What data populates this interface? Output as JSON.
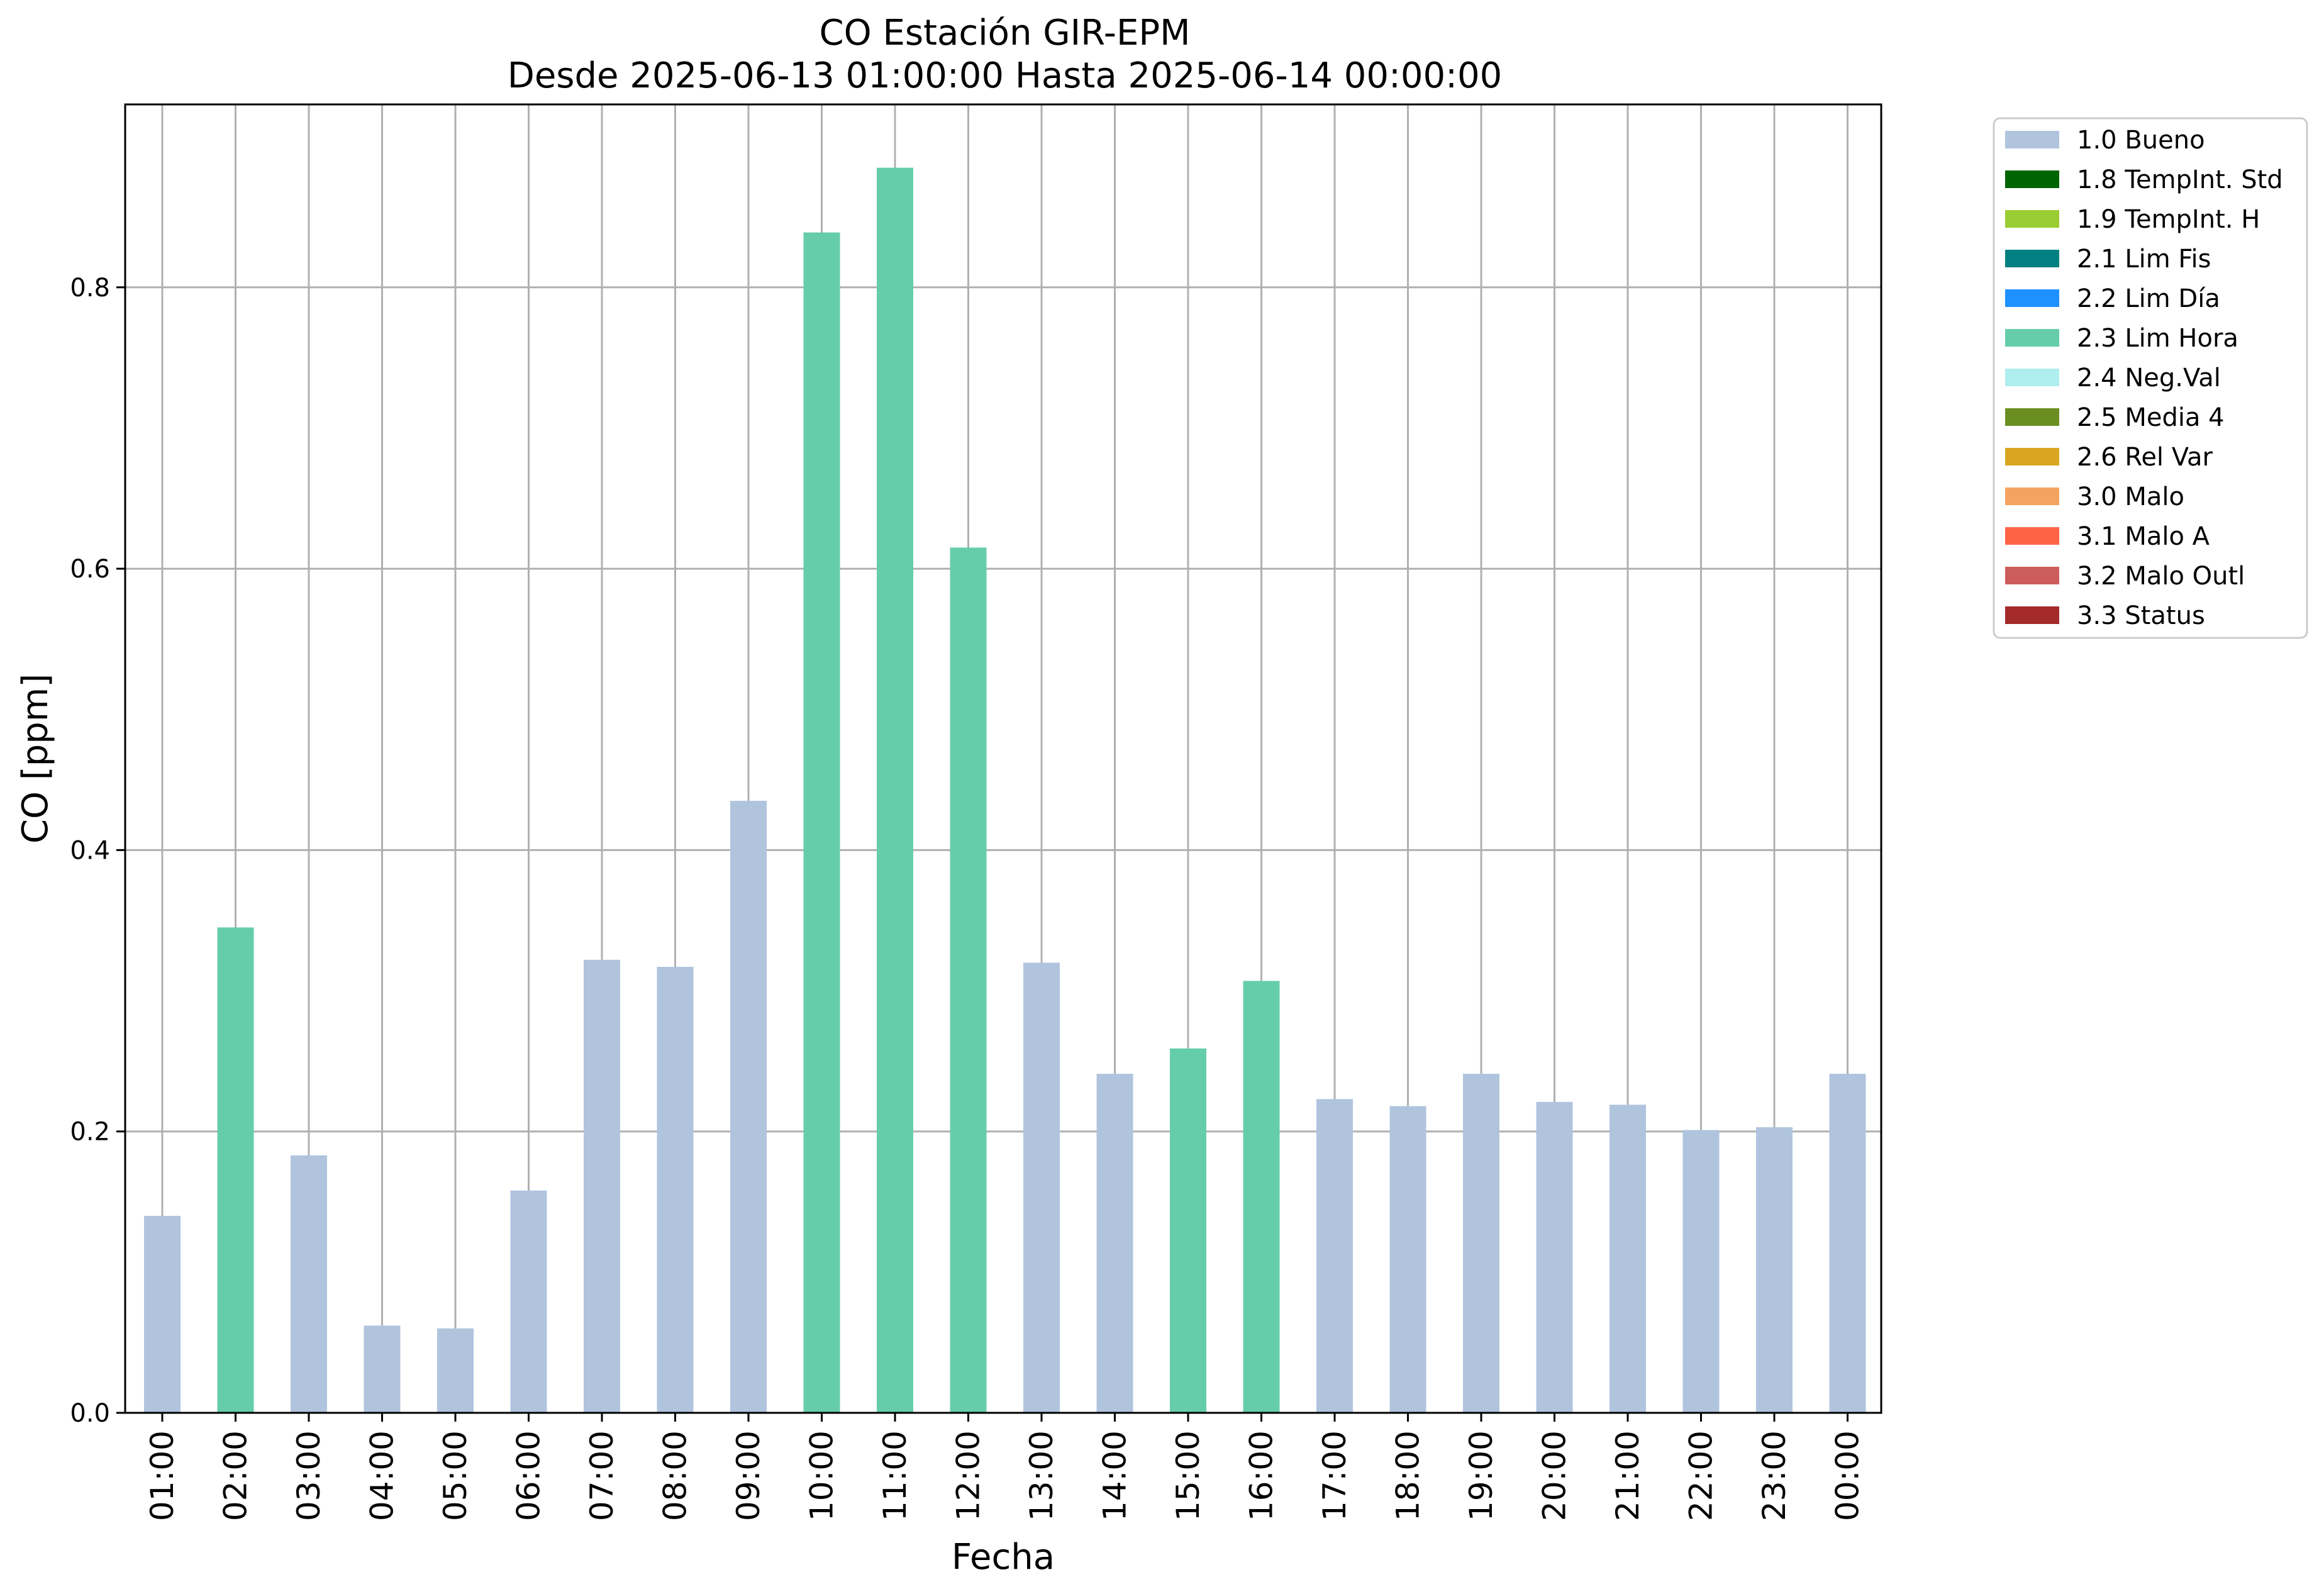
{
  "chart_data": {
    "type": "bar",
    "title": "CO Estación GIR-EPM",
    "subtitle": "Desde 2025-06-13 01:00:00 Hasta 2025-06-14 00:00:00",
    "xlabel": "Fecha",
    "ylabel": "CO [ppm]",
    "ylim": [
      0,
      0.93
    ],
    "yticks": [
      0.0,
      0.2,
      0.4,
      0.6,
      0.8
    ],
    "ytick_labels": [
      "0.0",
      "0.2",
      "0.4",
      "0.6",
      "0.8"
    ],
    "grid": true,
    "legend_position": "outside-top-right",
    "categories": [
      "01:00",
      "02:00",
      "03:00",
      "04:00",
      "05:00",
      "06:00",
      "07:00",
      "08:00",
      "09:00",
      "10:00",
      "11:00",
      "12:00",
      "13:00",
      "14:00",
      "15:00",
      "16:00",
      "17:00",
      "18:00",
      "19:00",
      "20:00",
      "21:00",
      "22:00",
      "23:00",
      "00:00"
    ],
    "values": [
      0.14,
      0.345,
      0.183,
      0.062,
      0.06,
      0.158,
      0.322,
      0.317,
      0.435,
      0.839,
      0.885,
      0.615,
      0.32,
      0.241,
      0.259,
      0.307,
      0.223,
      0.218,
      0.241,
      0.221,
      0.219,
      0.201,
      0.203,
      0.241
    ],
    "flags": [
      "1.0 Bueno",
      "2.3 Lim Hora",
      "1.0 Bueno",
      "1.0 Bueno",
      "1.0 Bueno",
      "1.0 Bueno",
      "1.0 Bueno",
      "1.0 Bueno",
      "1.0 Bueno",
      "2.3 Lim Hora",
      "2.3 Lim Hora",
      "2.3 Lim Hora",
      "1.0 Bueno",
      "1.0 Bueno",
      "2.3 Lim Hora",
      "2.3 Lim Hora",
      "1.0 Bueno",
      "1.0 Bueno",
      "1.0 Bueno",
      "1.0 Bueno",
      "1.0 Bueno",
      "1.0 Bueno",
      "1.0 Bueno",
      "1.0 Bueno"
    ],
    "legend": [
      {
        "label": "1.0 Bueno",
        "color": "#b0c4de"
      },
      {
        "label": "1.8 TempInt. Std",
        "color": "#006400"
      },
      {
        "label": "1.9 TempInt. H",
        "color": "#9acd32"
      },
      {
        "label": "2.1 Lim Fis",
        "color": "#008080"
      },
      {
        "label": "2.2 Lim Día",
        "color": "#1e90ff"
      },
      {
        "label": "2.3 Lim Hora",
        "color": "#66cdaa"
      },
      {
        "label": "2.4 Neg.Val",
        "color": "#afeeee"
      },
      {
        "label": "2.5 Media 4",
        "color": "#6b8e23"
      },
      {
        "label": "2.6 Rel Var",
        "color": "#daa520"
      },
      {
        "label": "3.0 Malo",
        "color": "#f4a460"
      },
      {
        "label": "3.1 Malo A",
        "color": "#ff6347"
      },
      {
        "label": "3.2 Malo Outl",
        "color": "#cd5c5c"
      },
      {
        "label": "3.3 Status",
        "color": "#a52a2a"
      }
    ]
  }
}
